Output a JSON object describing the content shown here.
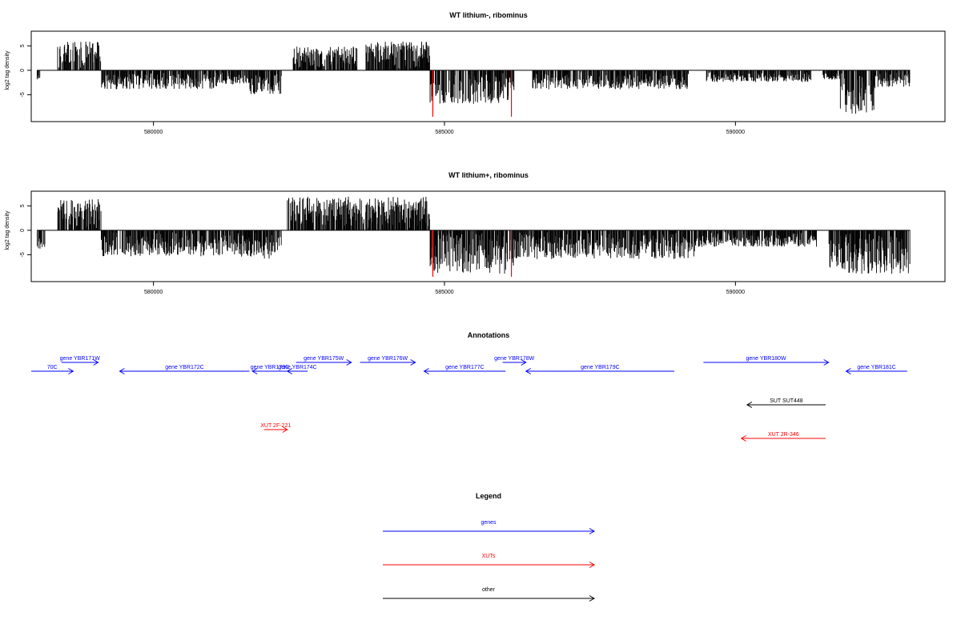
{
  "chart_data": [
    {
      "type": "bar",
      "title": "WT lithium-, ribominus",
      "ylabel": "log2 tag density",
      "xlabel": "",
      "xlim": [
        577900,
        593600
      ],
      "ylim": [
        -10.5,
        8
      ],
      "yticks": [
        -5,
        0,
        5
      ],
      "xticks": [
        580000,
        585000,
        590000
      ],
      "xtick_labels": [
        "580000",
        "585000",
        "590000"
      ],
      "data_start": 578000,
      "data_end": 593000,
      "colors": {
        "bars": "#000000",
        "highlight": "#ff0000"
      },
      "segments": [
        {
          "from": 578000,
          "to": 578050,
          "sign": -1,
          "amp": 2.5
        },
        {
          "from": 578350,
          "to": 579100,
          "sign": 1,
          "amp": 5.5
        },
        {
          "from": 579100,
          "to": 581100,
          "sign": -1,
          "amp": 3.5
        },
        {
          "from": 581100,
          "to": 581650,
          "sign": -1,
          "amp": 2.5
        },
        {
          "from": 581650,
          "to": 582200,
          "sign": -1,
          "amp": 4.5
        },
        {
          "from": 582400,
          "to": 583500,
          "sign": 1,
          "amp": 4.5
        },
        {
          "from": 583650,
          "to": 584750,
          "sign": 1,
          "amp": 5.5
        },
        {
          "from": 584750,
          "to": 586200,
          "sign": -1,
          "amp": 6.5
        },
        {
          "from": 586500,
          "to": 589200,
          "sign": -1,
          "amp": 3.5
        },
        {
          "from": 589500,
          "to": 591300,
          "sign": -1,
          "amp": 2.0
        },
        {
          "from": 591500,
          "to": 591800,
          "sign": -1,
          "amp": 1.5
        },
        {
          "from": 591800,
          "to": 592400,
          "sign": -1,
          "amp": 8.5
        },
        {
          "from": 592400,
          "to": 593000,
          "sign": -1,
          "amp": 3.0
        }
      ],
      "highlight_bars": [
        {
          "x": 584800,
          "y": -9.5
        },
        {
          "x": 586150,
          "y": -9.5
        }
      ]
    },
    {
      "type": "bar",
      "title": "WT lithium+, ribominus",
      "ylabel": "log2 tag density",
      "xlabel": "",
      "xlim": [
        577900,
        593600
      ],
      "ylim": [
        -10.5,
        8
      ],
      "yticks": [
        -5,
        0,
        5
      ],
      "xticks": [
        580000,
        585000,
        590000
      ],
      "xtick_labels": [
        "580000",
        "585000",
        "590000"
      ],
      "data_start": 578000,
      "data_end": 593000,
      "colors": {
        "bars": "#000000",
        "highlight": "#ff0000"
      },
      "segments": [
        {
          "from": 578000,
          "to": 578150,
          "sign": -1,
          "amp": 4.0
        },
        {
          "from": 578350,
          "to": 579100,
          "sign": 1,
          "amp": 6.0
        },
        {
          "from": 579100,
          "to": 581500,
          "sign": -1,
          "amp": 5.0
        },
        {
          "from": 581500,
          "to": 582200,
          "sign": -1,
          "amp": 5.5
        },
        {
          "from": 582300,
          "to": 584750,
          "sign": 1,
          "amp": 6.5
        },
        {
          "from": 584750,
          "to": 586200,
          "sign": -1,
          "amp": 8.5
        },
        {
          "from": 586200,
          "to": 589300,
          "sign": -1,
          "amp": 5.5
        },
        {
          "from": 589300,
          "to": 591400,
          "sign": -1,
          "amp": 3.0
        },
        {
          "from": 591600,
          "to": 591900,
          "sign": -1,
          "amp": 8.0
        },
        {
          "from": 591900,
          "to": 593000,
          "sign": -1,
          "amp": 8.5
        }
      ],
      "highlight_bars": [
        {
          "x": 584800,
          "y": -9.5
        },
        {
          "x": 586150,
          "y": -9.5
        }
      ]
    }
  ],
  "annotations": {
    "title": "Annotations",
    "xlim": [
      577900,
      593600
    ],
    "features": [
      {
        "label": "70C",
        "start": 577900,
        "end": 578620,
        "strand": "+",
        "row": 1,
        "color": "#0000ff"
      },
      {
        "label": "gene YBR171W",
        "start": 578420,
        "end": 579050,
        "strand": "+",
        "row": 0,
        "color": "#0000ff"
      },
      {
        "label": "gene YBR172C",
        "start": 579420,
        "end": 581650,
        "strand": "-",
        "row": 1,
        "color": "#0000ff"
      },
      {
        "label": "gene YBR173C",
        "start": 581700,
        "end": 582300,
        "strand": "-",
        "row": 1,
        "color": "#0000ff"
      },
      {
        "label": "gene YBR174C",
        "start": 582300,
        "end": 582650,
        "strand": "-",
        "row": 1,
        "color": "#0000ff"
      },
      {
        "label": "gene YBR175W",
        "start": 582450,
        "end": 583400,
        "strand": "+",
        "row": 0,
        "color": "#0000ff"
      },
      {
        "label": "gene YBR176W",
        "start": 583550,
        "end": 584500,
        "strand": "+",
        "row": 0,
        "color": "#0000ff"
      },
      {
        "label": "gene YBR177C",
        "start": 584650,
        "end": 586050,
        "strand": "-",
        "row": 1,
        "color": "#0000ff"
      },
      {
        "label": "gene YBR178W",
        "start": 586000,
        "end": 586400,
        "strand": "+",
        "row": 0,
        "color": "#0000ff"
      },
      {
        "label": "gene YBR179C",
        "start": 586400,
        "end": 588950,
        "strand": "-",
        "row": 1,
        "color": "#0000ff"
      },
      {
        "label": "gene YBR180W",
        "start": 589450,
        "end": 591600,
        "strand": "+",
        "row": 0,
        "color": "#0000ff"
      },
      {
        "label": "gene YBR181C",
        "start": 591900,
        "end": 592950,
        "strand": "-",
        "row": 1,
        "color": "#0000ff"
      },
      {
        "label": "SUT SUT448",
        "start": 590200,
        "end": 591550,
        "strand": "-",
        "row": 3,
        "color": "#000000"
      },
      {
        "label": "XUT 2F-221",
        "start": 581900,
        "end": 582300,
        "strand": "+",
        "row": 4,
        "color": "#ff0000"
      },
      {
        "label": "XUT 2R-346",
        "start": 590100,
        "end": 591550,
        "strand": "-",
        "row": 5,
        "color": "#ff0000"
      }
    ]
  },
  "legend": {
    "title": "Legend",
    "items": [
      {
        "label": "genes",
        "color": "#0000ff"
      },
      {
        "label": "XUTs",
        "color": "#ff0000"
      },
      {
        "label": "other",
        "color": "#000000"
      }
    ]
  }
}
